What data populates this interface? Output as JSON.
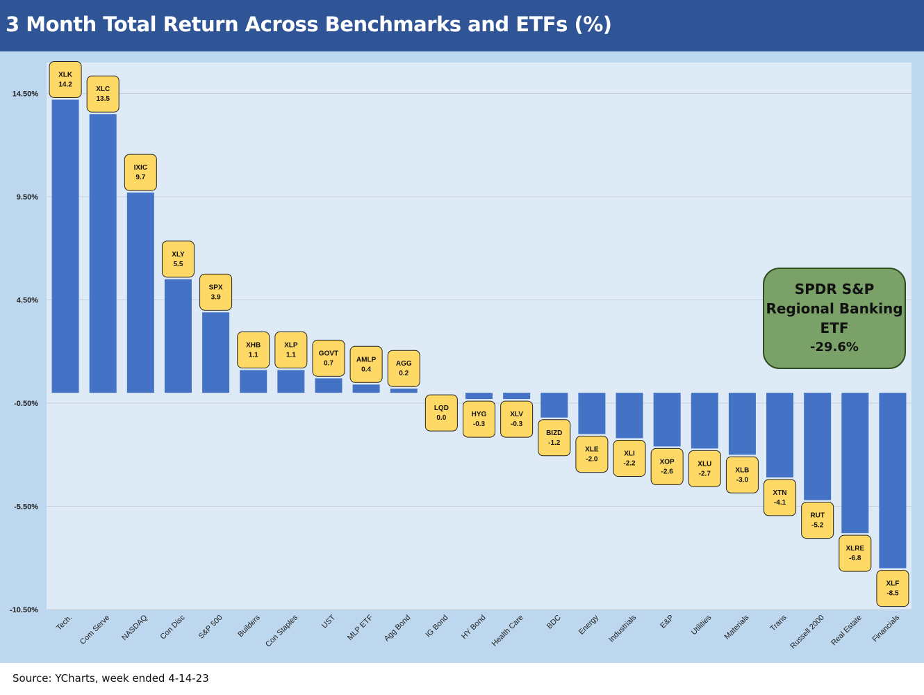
{
  "header": {
    "title": "3 Month Total Return Across Benchmarks and ETFs (%)"
  },
  "footer": {
    "source": "Source: YCharts, week ended 4-14-23"
  },
  "callout": {
    "line1": "SPDR S&P",
    "line2": "Regional Banking",
    "line3": "ETF",
    "value": "-29.6%"
  },
  "colors": {
    "bar": "#4472c4",
    "label_fill": "#ffd966",
    "plot_bg": "#deebf7",
    "frame_bg": "#bdd7ee",
    "callout_fill": "#7aa268",
    "header": "#2f5597"
  },
  "chart_data": {
    "type": "bar",
    "title": "3 Month Total Return Across Benchmarks and ETFs (%)",
    "xlabel": "",
    "ylabel": "",
    "ylim": [
      -10.5,
      16.0
    ],
    "y_ticks": [
      14.5,
      9.5,
      4.5,
      -0.5,
      -5.5,
      -10.5
    ],
    "y_tick_labels": [
      "14.50%",
      "9.50%",
      "4.50%",
      "-0.50%",
      "-5.50%",
      "-10.50%"
    ],
    "grid": true,
    "categories": [
      "Tech.",
      "Com Serve",
      "NASDAQ",
      "Con Disc",
      "S&P 500",
      "Builders",
      "Con Staples",
      "UST",
      "MLP ETF",
      "Agg Bond",
      "IG Bond",
      "HY Bond",
      "Health Care",
      "BDC",
      "Energy",
      "Industrials",
      "E&P",
      "Utilities",
      "Materials",
      "Trans",
      "Russell 2000",
      "Real Estate",
      "Financials"
    ],
    "tickers": [
      "XLK",
      "XLC",
      "IXIC",
      "XLY",
      "SPX",
      "XHB",
      "XLP",
      "GOVT",
      "AMLP",
      "AGG",
      "LQD",
      "HYG",
      "XLV",
      "BIZD",
      "XLE",
      "XLI",
      "XOP",
      "XLU",
      "XLB",
      "XTN",
      "RUT",
      "XLRE",
      "XLF"
    ],
    "value_labels": [
      "14.2",
      "13.5",
      "9.7",
      "5.5",
      "3.9",
      "1.1",
      "1.1",
      "0.7",
      "0.4",
      "0.2",
      "0.0",
      "-0.3",
      "-0.3",
      "-1.2",
      "-2.0",
      "-2.2",
      "-2.6",
      "-2.7",
      "-3.0",
      "-4.1",
      "-5.2",
      "-6.8",
      "-8.5"
    ],
    "values": [
      14.2,
      13.5,
      9.7,
      5.5,
      3.9,
      1.1,
      1.1,
      0.7,
      0.4,
      0.2,
      0.0,
      -0.3,
      -0.3,
      -1.2,
      -2.0,
      -2.2,
      -2.6,
      -2.7,
      -3.0,
      -4.1,
      -5.2,
      -6.8,
      -8.5
    ]
  }
}
